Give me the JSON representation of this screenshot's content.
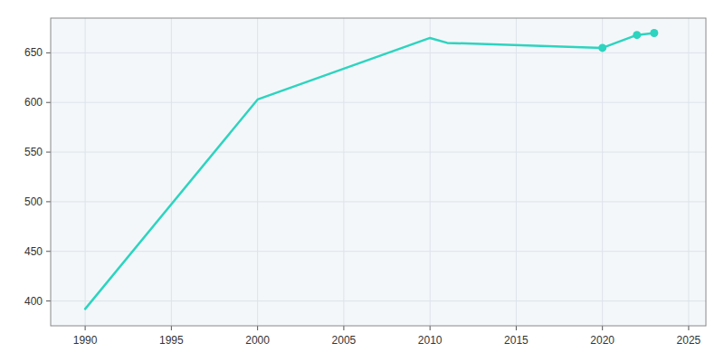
{
  "chart_data": {
    "type": "line",
    "x": [
      1990,
      2000,
      2010,
      2011,
      2020,
      2022,
      2023
    ],
    "series": [
      {
        "color": "#2dd4bf",
        "values": [
          392,
          603,
          665,
          660,
          655,
          668,
          670
        ]
      },
      {
        "type": "scatter",
        "marker": "circle",
        "color": "#2dd4bf",
        "values": [
          null,
          null,
          null,
          null,
          655,
          668,
          670
        ]
      }
    ],
    "xlim": [
      1988,
      2026
    ],
    "ylim": [
      375,
      685
    ],
    "xticks": [
      1990,
      1995,
      2000,
      2005,
      2010,
      2015,
      2020,
      2025
    ],
    "yticks": [
      400,
      450,
      500,
      550,
      600,
      650
    ],
    "grid": true
  }
}
